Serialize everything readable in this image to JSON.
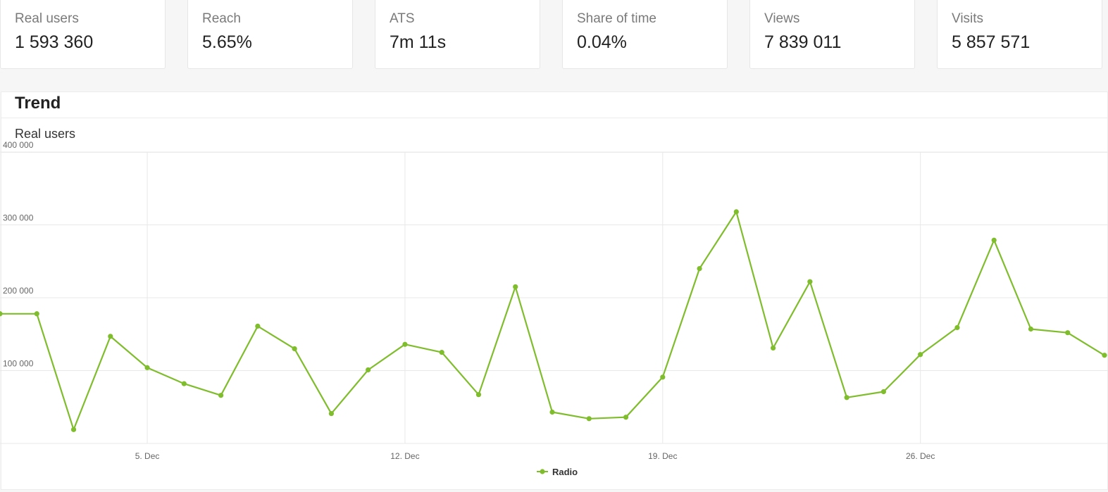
{
  "kpis": [
    {
      "label": "Real users",
      "value": "1 593 360"
    },
    {
      "label": "Reach",
      "value": "5.65%"
    },
    {
      "label": "ATS",
      "value": "7m 11s"
    },
    {
      "label": "Share of time",
      "value": "0.04%"
    },
    {
      "label": "Views",
      "value": "7 839 011"
    },
    {
      "label": "Visits",
      "value": "5 857 571"
    }
  ],
  "panel": {
    "title": "Trend",
    "subtitle": "Real users"
  },
  "colors": {
    "series": "#7fbd2c",
    "grid": "#e8e8e8",
    "card_border": "#e6e6e6"
  },
  "chart_data": {
    "type": "line",
    "title": "Real users",
    "xlabel": "",
    "ylabel": "",
    "ylim": [
      0,
      400000
    ],
    "yticks": [
      100000,
      200000,
      300000,
      400000
    ],
    "ytick_labels": [
      "100 000",
      "200 000",
      "300 000",
      "400 000"
    ],
    "x_range": [
      "2022-12-01",
      "2022-12-31"
    ],
    "xtick_dates": [
      "2022-12-05",
      "2022-12-12",
      "2022-12-19",
      "2022-12-26"
    ],
    "xtick_labels": [
      "5. Dec",
      "12. Dec",
      "19. Dec",
      "26. Dec"
    ],
    "grid": true,
    "legend": "bottom-center",
    "series": [
      {
        "name": "Radio",
        "x": [
          "2022-12-01",
          "2022-12-02",
          "2022-12-03",
          "2022-12-04",
          "2022-12-05",
          "2022-12-06",
          "2022-12-07",
          "2022-12-08",
          "2022-12-09",
          "2022-12-10",
          "2022-12-11",
          "2022-12-12",
          "2022-12-13",
          "2022-12-14",
          "2022-12-15",
          "2022-12-16",
          "2022-12-17",
          "2022-12-18",
          "2022-12-19",
          "2022-12-20",
          "2022-12-21",
          "2022-12-22",
          "2022-12-23",
          "2022-12-24",
          "2022-12-25",
          "2022-12-26",
          "2022-12-27",
          "2022-12-28",
          "2022-12-29",
          "2022-12-30",
          "2022-12-31"
        ],
        "values": [
          178000,
          178000,
          19000,
          147000,
          104000,
          82000,
          66000,
          161000,
          130000,
          41000,
          101000,
          136000,
          125000,
          67000,
          215000,
          43000,
          34000,
          36000,
          91000,
          240000,
          318000,
          131000,
          222000,
          63000,
          71000,
          122000,
          159000,
          279000,
          157000,
          152000,
          121000
        ]
      }
    ]
  }
}
